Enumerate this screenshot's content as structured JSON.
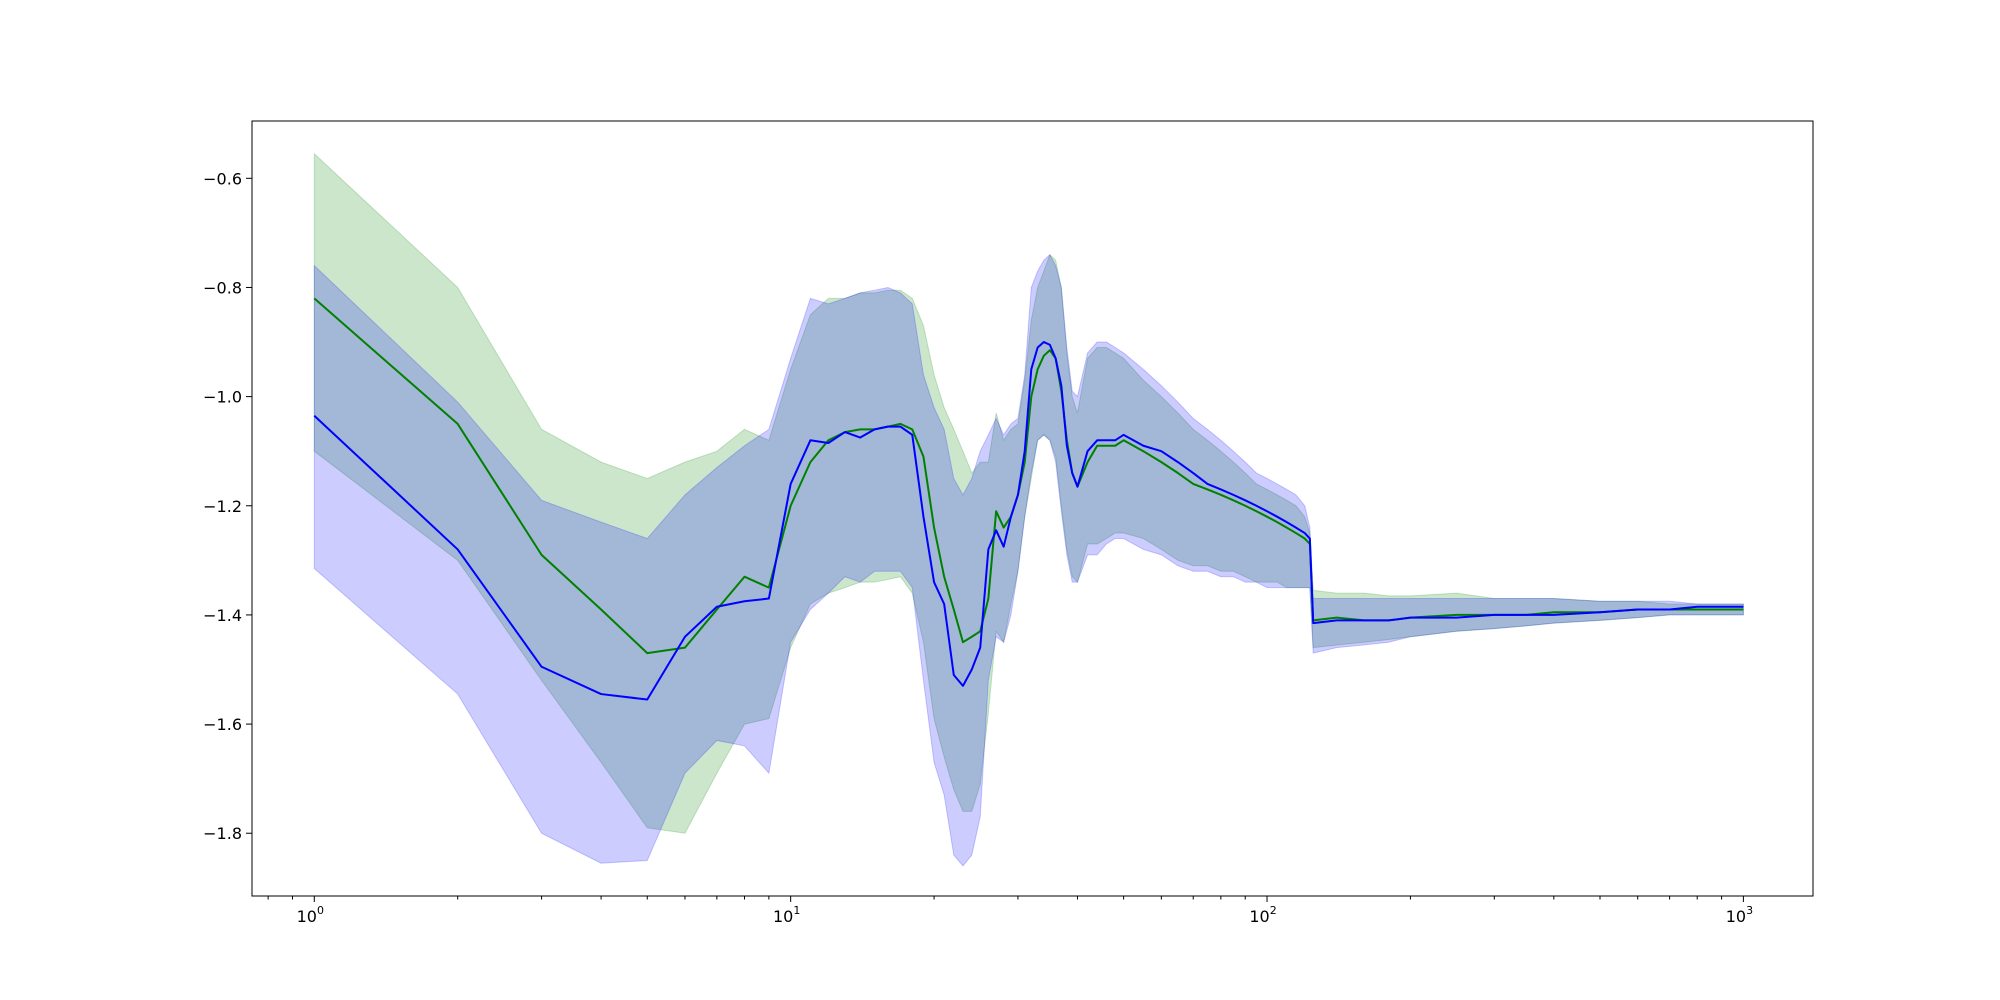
{
  "chart_data": {
    "type": "line",
    "title": "",
    "xlabel": "",
    "ylabel": "",
    "xscale": "log",
    "xlim": [
      0.74,
      1400
    ],
    "ylim": [
      -1.915,
      -0.495
    ],
    "grid": false,
    "legend": "none",
    "x_ticks": [
      {
        "value": 1,
        "base": "10",
        "exp": "0"
      },
      {
        "value": 10,
        "base": "10",
        "exp": "1"
      },
      {
        "value": 100,
        "base": "10",
        "exp": "2"
      },
      {
        "value": 1000,
        "base": "10",
        "exp": "3"
      }
    ],
    "y_ticks": [
      {
        "value": -0.6,
        "label": "−0.6"
      },
      {
        "value": -0.8,
        "label": "−0.8"
      },
      {
        "value": -1.0,
        "label": "−1.0"
      },
      {
        "value": -1.2,
        "label": "−1.2"
      },
      {
        "value": -1.4,
        "label": "−1.4"
      },
      {
        "value": -1.6,
        "label": "−1.6"
      },
      {
        "value": -1.8,
        "label": "−1.8"
      }
    ],
    "series": [
      {
        "color": "#008000",
        "band_color": "#008000",
        "band_opacity": 0.2,
        "x": [
          1,
          2,
          3,
          4,
          5,
          6,
          7,
          8,
          9,
          10,
          11,
          12,
          13,
          14,
          15,
          16,
          17,
          18,
          19,
          20,
          21,
          22,
          23,
          24,
          25,
          26,
          27,
          28,
          29,
          30,
          31,
          32,
          33,
          34,
          35,
          36,
          37,
          38,
          39,
          40,
          42,
          44,
          46,
          48,
          50,
          55,
          60,
          65,
          70,
          75,
          80,
          85,
          90,
          95,
          100,
          105,
          110,
          115,
          120,
          123,
          125,
          140,
          160,
          180,
          200,
          250,
          300,
          350,
          400,
          500,
          600,
          700,
          800,
          900,
          1000
        ],
        "y": [
          -0.82,
          -1.05,
          -1.29,
          -1.39,
          -1.47,
          -1.46,
          -1.39,
          -1.33,
          -1.35,
          -1.2,
          -1.12,
          -1.08,
          -1.065,
          -1.06,
          -1.06,
          -1.055,
          -1.05,
          -1.06,
          -1.11,
          -1.24,
          -1.33,
          -1.39,
          -1.45,
          -1.44,
          -1.43,
          -1.37,
          -1.21,
          -1.24,
          -1.22,
          -1.18,
          -1.12,
          -1.0,
          -0.95,
          -0.925,
          -0.915,
          -0.93,
          -0.99,
          -1.08,
          -1.14,
          -1.165,
          -1.12,
          -1.09,
          -1.09,
          -1.09,
          -1.08,
          -1.1,
          -1.12,
          -1.14,
          -1.16,
          -1.17,
          -1.18,
          -1.19,
          -1.2,
          -1.21,
          -1.22,
          -1.23,
          -1.24,
          -1.25,
          -1.26,
          -1.27,
          -1.41,
          -1.405,
          -1.41,
          -1.41,
          -1.405,
          -1.4,
          -1.4,
          -1.4,
          -1.395,
          -1.395,
          -1.39,
          -1.39,
          -1.39,
          -1.39,
          -1.39
        ],
        "upper": [
          -0.555,
          -0.8,
          -1.06,
          -1.12,
          -1.15,
          -1.12,
          -1.1,
          -1.06,
          -1.08,
          -0.95,
          -0.85,
          -0.82,
          -0.82,
          -0.81,
          -0.81,
          -0.805,
          -0.805,
          -0.82,
          -0.87,
          -0.96,
          -1.02,
          -1.06,
          -1.1,
          -1.14,
          -1.12,
          -1.12,
          -1.03,
          -1.08,
          -1.06,
          -1.05,
          -0.97,
          -0.86,
          -0.8,
          -0.77,
          -0.74,
          -0.75,
          -0.8,
          -0.92,
          -1.0,
          -1.03,
          -0.93,
          -0.91,
          -0.91,
          -0.92,
          -0.93,
          -0.97,
          -1.0,
          -1.03,
          -1.06,
          -1.08,
          -1.1,
          -1.12,
          -1.14,
          -1.16,
          -1.17,
          -1.18,
          -1.19,
          -1.2,
          -1.22,
          -1.25,
          -1.355,
          -1.36,
          -1.36,
          -1.365,
          -1.365,
          -1.36,
          -1.37,
          -1.37,
          -1.37,
          -1.375,
          -1.375,
          -1.38,
          -1.38,
          -1.38,
          -1.38
        ],
        "lower": [
          -1.1,
          -1.3,
          -1.52,
          -1.67,
          -1.79,
          -1.8,
          -1.69,
          -1.6,
          -1.59,
          -1.46,
          -1.38,
          -1.36,
          -1.35,
          -1.34,
          -1.34,
          -1.335,
          -1.33,
          -1.36,
          -1.45,
          -1.59,
          -1.66,
          -1.72,
          -1.76,
          -1.76,
          -1.71,
          -1.58,
          -1.43,
          -1.45,
          -1.38,
          -1.32,
          -1.22,
          -1.15,
          -1.08,
          -1.07,
          -1.08,
          -1.11,
          -1.2,
          -1.28,
          -1.33,
          -1.34,
          -1.27,
          -1.27,
          -1.26,
          -1.25,
          -1.25,
          -1.26,
          -1.28,
          -1.3,
          -1.31,
          -1.31,
          -1.32,
          -1.32,
          -1.33,
          -1.34,
          -1.34,
          -1.34,
          -1.35,
          -1.35,
          -1.35,
          -1.35,
          -1.46,
          -1.455,
          -1.45,
          -1.445,
          -1.44,
          -1.43,
          -1.425,
          -1.42,
          -1.415,
          -1.41,
          -1.405,
          -1.4,
          -1.4,
          -1.4,
          -1.4
        ]
      },
      {
        "color": "#0000ff",
        "band_color": "#0000ff",
        "band_opacity": 0.2,
        "x": [
          1,
          2,
          3,
          4,
          5,
          6,
          7,
          8,
          9,
          10,
          11,
          12,
          13,
          14,
          15,
          16,
          17,
          18,
          19,
          20,
          21,
          22,
          23,
          24,
          25,
          26,
          27,
          28,
          29,
          30,
          31,
          32,
          33,
          34,
          35,
          36,
          37,
          38,
          39,
          40,
          42,
          44,
          46,
          48,
          50,
          55,
          60,
          65,
          70,
          75,
          80,
          85,
          90,
          95,
          100,
          105,
          110,
          115,
          120,
          123,
          125,
          140,
          160,
          180,
          200,
          250,
          300,
          350,
          400,
          500,
          600,
          700,
          800,
          900,
          1000
        ],
        "y": [
          -1.035,
          -1.28,
          -1.495,
          -1.545,
          -1.555,
          -1.44,
          -1.385,
          -1.375,
          -1.37,
          -1.16,
          -1.08,
          -1.085,
          -1.065,
          -1.075,
          -1.06,
          -1.055,
          -1.055,
          -1.07,
          -1.22,
          -1.34,
          -1.38,
          -1.51,
          -1.53,
          -1.5,
          -1.46,
          -1.28,
          -1.245,
          -1.275,
          -1.22,
          -1.18,
          -1.1,
          -0.95,
          -0.91,
          -0.9,
          -0.905,
          -0.93,
          -0.98,
          -1.09,
          -1.14,
          -1.165,
          -1.1,
          -1.08,
          -1.08,
          -1.08,
          -1.07,
          -1.09,
          -1.1,
          -1.12,
          -1.14,
          -1.16,
          -1.17,
          -1.18,
          -1.19,
          -1.2,
          -1.21,
          -1.22,
          -1.23,
          -1.24,
          -1.25,
          -1.26,
          -1.415,
          -1.41,
          -1.41,
          -1.41,
          -1.405,
          -1.405,
          -1.4,
          -1.4,
          -1.4,
          -1.395,
          -1.39,
          -1.39,
          -1.385,
          -1.385,
          -1.385
        ],
        "upper": [
          -0.76,
          -1.01,
          -1.19,
          -1.23,
          -1.26,
          -1.18,
          -1.13,
          -1.09,
          -1.06,
          -0.93,
          -0.82,
          -0.83,
          -0.82,
          -0.81,
          -0.805,
          -0.8,
          -0.81,
          -0.83,
          -0.96,
          -1.02,
          -1.06,
          -1.15,
          -1.18,
          -1.15,
          -1.1,
          -1.07,
          -1.04,
          -1.07,
          -1.05,
          -1.04,
          -0.96,
          -0.8,
          -0.77,
          -0.75,
          -0.74,
          -0.76,
          -0.8,
          -0.91,
          -0.99,
          -1.0,
          -0.92,
          -0.9,
          -0.9,
          -0.91,
          -0.92,
          -0.95,
          -0.98,
          -1.01,
          -1.04,
          -1.06,
          -1.08,
          -1.1,
          -1.12,
          -1.14,
          -1.15,
          -1.16,
          -1.17,
          -1.18,
          -1.2,
          -1.24,
          -1.37,
          -1.37,
          -1.37,
          -1.37,
          -1.37,
          -1.37,
          -1.37,
          -1.37,
          -1.37,
          -1.375,
          -1.375,
          -1.375,
          -1.38,
          -1.38,
          -1.38
        ],
        "lower": [
          -1.315,
          -1.545,
          -1.8,
          -1.855,
          -1.85,
          -1.69,
          -1.63,
          -1.64,
          -1.69,
          -1.45,
          -1.39,
          -1.36,
          -1.33,
          -1.34,
          -1.32,
          -1.32,
          -1.32,
          -1.35,
          -1.52,
          -1.67,
          -1.73,
          -1.84,
          -1.86,
          -1.84,
          -1.77,
          -1.52,
          -1.44,
          -1.45,
          -1.4,
          -1.32,
          -1.22,
          -1.14,
          -1.08,
          -1.07,
          -1.08,
          -1.12,
          -1.21,
          -1.29,
          -1.34,
          -1.34,
          -1.29,
          -1.29,
          -1.27,
          -1.26,
          -1.26,
          -1.28,
          -1.29,
          -1.31,
          -1.32,
          -1.32,
          -1.33,
          -1.33,
          -1.34,
          -1.34,
          -1.35,
          -1.35,
          -1.35,
          -1.35,
          -1.35,
          -1.35,
          -1.47,
          -1.46,
          -1.455,
          -1.45,
          -1.44,
          -1.43,
          -1.425,
          -1.42,
          -1.415,
          -1.41,
          -1.405,
          -1.4,
          -1.4,
          -1.4,
          -1.4
        ]
      }
    ]
  }
}
